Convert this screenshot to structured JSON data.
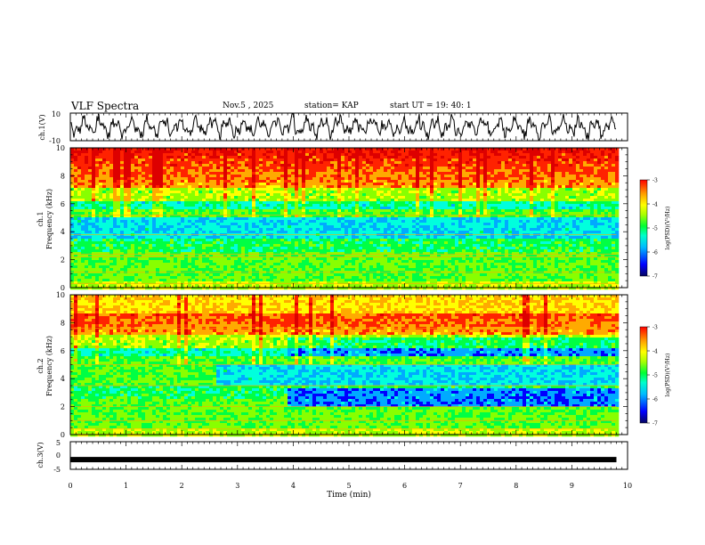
{
  "header": {
    "title": "VLF Spectra",
    "date": "Nov.5 , 2025",
    "station": "station= KAP",
    "start": "start UT = 19: 40: 1"
  },
  "colors": {
    "colormap": [
      "#08087a",
      "#0000ff",
      "#00aaff",
      "#00ffdd",
      "#00ff44",
      "#88ff00",
      "#ffff00",
      "#ffaa00",
      "#ff2200",
      "#dd0000"
    ],
    "trace": "#000000",
    "frame": "#000000"
  },
  "chart_data": [
    {
      "type": "line",
      "name": "ch1-waveform",
      "ylabel": "ch.1(V)",
      "ylim": [
        -10,
        10
      ],
      "yticks": [
        "10",
        "-10"
      ],
      "xlim": [
        0,
        10
      ],
      "duration_min": 9.8
    },
    {
      "type": "heatmap",
      "name": "ch1-spectrogram",
      "ylabel": "ch.1\nFrequency (kHz)",
      "ylim": [
        0,
        10
      ],
      "yticks": [
        "0",
        "2",
        "4",
        "6",
        "8",
        "10"
      ],
      "xlim": [
        0,
        10
      ],
      "colorbar": {
        "label": "log(PSD)(V²/Hz)",
        "range": [
          -7,
          -3
        ],
        "ticks": [
          "-3",
          "-4",
          "-5",
          "-6",
          "-7"
        ]
      }
    },
    {
      "type": "heatmap",
      "name": "ch2-spectrogram",
      "ylabel": "ch.2\nFrequency (kHz)",
      "ylim": [
        0,
        10
      ],
      "yticks": [
        "0",
        "2",
        "4",
        "6",
        "8",
        "10"
      ],
      "xlim": [
        0,
        10
      ],
      "colorbar": {
        "label": "log(PSD)(V²/Hz)",
        "range": [
          -7,
          -3
        ],
        "ticks": [
          "-3",
          "-4",
          "-5",
          "-6",
          "-7"
        ]
      }
    },
    {
      "type": "line",
      "name": "ch3-waveform",
      "ylabel": "ch.3(V)",
      "ylim": [
        -5,
        5
      ],
      "yticks": [
        "5",
        "0",
        "-5"
      ],
      "xlim": [
        0,
        10
      ],
      "level": -1.5
    }
  ],
  "xaxis": {
    "label": "Time (min)",
    "ticks": [
      "0",
      "1",
      "2",
      "3",
      "4",
      "5",
      "6",
      "7",
      "8",
      "9",
      "10"
    ]
  }
}
